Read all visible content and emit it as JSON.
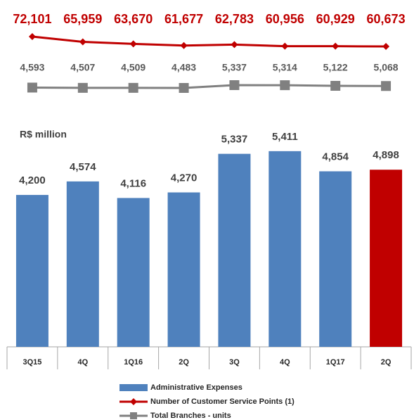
{
  "chart_data": {
    "type": "bar",
    "subtitle": "R$ million",
    "categories": [
      "3Q15",
      "4Q",
      "1Q16",
      "2Q",
      "3Q",
      "4Q",
      "1Q17",
      "2Q"
    ],
    "ylim": [
      0,
      5700
    ],
    "series": [
      {
        "name": "Administrative Expenses",
        "type": "bar",
        "color": "#4f81bd",
        "colors": [
          "#4f81bd",
          "#4f81bd",
          "#4f81bd",
          "#4f81bd",
          "#4f81bd",
          "#4f81bd",
          "#4f81bd",
          "#c00000"
        ],
        "values": [
          4200,
          4574,
          4116,
          4270,
          5337,
          5411,
          4854,
          4898
        ],
        "value_labels": [
          "4,200",
          "4,574",
          "4,116",
          "4,270",
          "5,337",
          "5,411",
          "4,854",
          "4,898"
        ]
      },
      {
        "name": "Number of Customer Service Points (1)",
        "type": "line",
        "color": "#c00000",
        "values": [
          72101,
          65959,
          63670,
          61677,
          62783,
          60956,
          60929,
          60673
        ],
        "value_labels": [
          "72,101",
          "65,959",
          "63,670",
          "61,677",
          "62,783",
          "60,956",
          "60,929",
          "60,673"
        ]
      },
      {
        "name": "Total Branches - units",
        "type": "line",
        "color": "#808080",
        "values": [
          4593,
          4507,
          4509,
          4483,
          5337,
          5314,
          5122,
          5068
        ],
        "value_labels": [
          "4,593",
          "4,507",
          "4,509",
          "4,483",
          "5,337",
          "5,314",
          "5,122",
          "5,068"
        ]
      }
    ]
  }
}
